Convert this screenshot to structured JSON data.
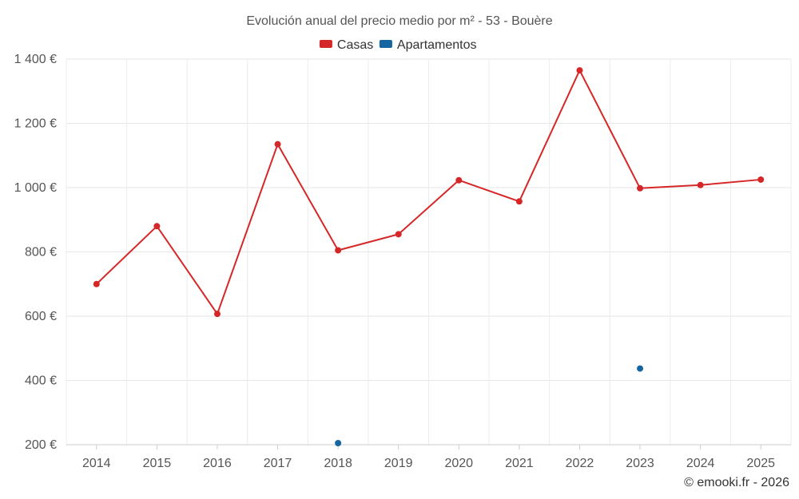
{
  "chart_data": {
    "type": "line",
    "title": "Evolución anual del precio medio por m² - 53 - Bouère",
    "categories": [
      "2014",
      "2015",
      "2016",
      "2017",
      "2018",
      "2019",
      "2020",
      "2021",
      "2022",
      "2023",
      "2024",
      "2025"
    ],
    "ylim": [
      200,
      1400
    ],
    "yticks": [
      200,
      400,
      600,
      800,
      1000,
      1200,
      1400
    ],
    "ytick_labels": [
      "200 €",
      "400 €",
      "600 €",
      "800 €",
      "1 000 €",
      "1 200 €",
      "1 400 €"
    ],
    "grid": true,
    "legend_position": "top-center",
    "series": [
      {
        "name": "Casas",
        "color": "#d62728",
        "values": [
          700,
          880,
          607,
          1135,
          805,
          855,
          1023,
          957,
          1365,
          998,
          1008,
          1025
        ]
      },
      {
        "name": "Apartamentos",
        "color": "#1565a0",
        "values": [
          null,
          null,
          null,
          null,
          205,
          null,
          null,
          null,
          null,
          437,
          null,
          null
        ]
      }
    ]
  },
  "credit": "© emooki.fr - 2026"
}
